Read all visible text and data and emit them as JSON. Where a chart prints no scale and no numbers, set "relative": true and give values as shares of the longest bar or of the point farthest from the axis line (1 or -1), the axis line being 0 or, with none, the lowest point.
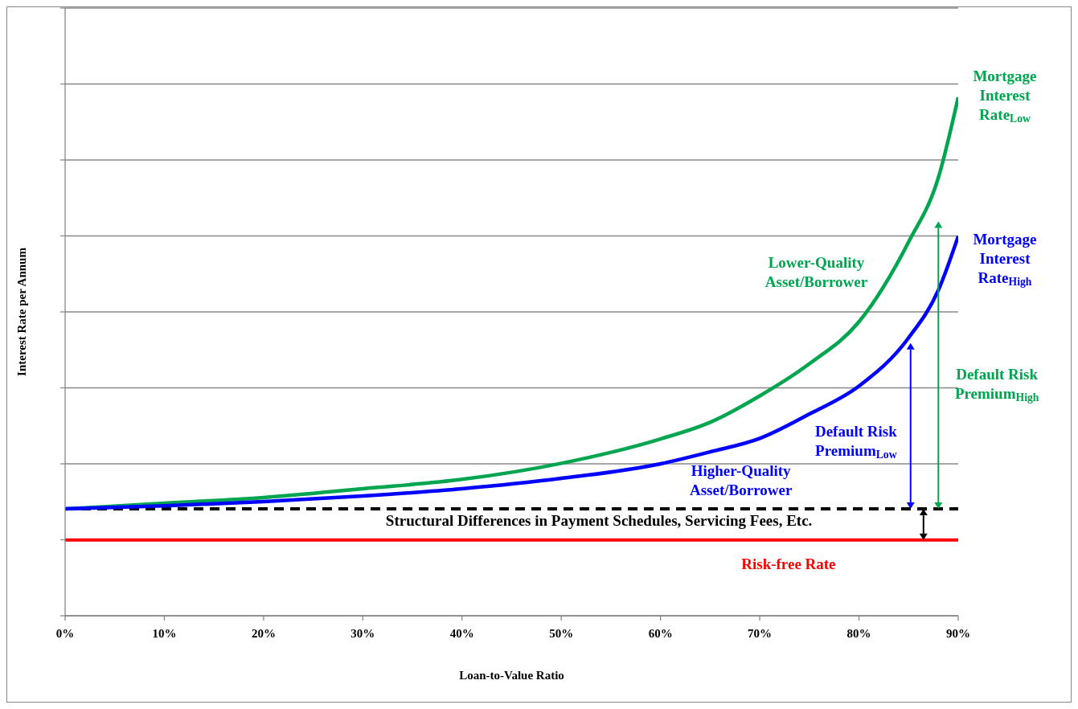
{
  "chart_data": {
    "type": "line",
    "relative": true,
    "xlabel": "Loan-to-Value  Ratio",
    "ylabel": "Interest Rate per Annum",
    "x": [
      0,
      10,
      20,
      30,
      40,
      50,
      60,
      65,
      70,
      75,
      80,
      85,
      88,
      90
    ],
    "xlim": [
      0,
      90
    ],
    "xticks": [
      {
        "value": 0,
        "label": "0%"
      },
      {
        "value": 10,
        "label": "10%"
      },
      {
        "value": 20,
        "label": "20%"
      },
      {
        "value": 30,
        "label": "30%"
      },
      {
        "value": 40,
        "label": "40%"
      },
      {
        "value": 50,
        "label": "50%"
      },
      {
        "value": 60,
        "label": "60%"
      },
      {
        "value": 70,
        "label": "70%"
      },
      {
        "value": 80,
        "label": "80%"
      },
      {
        "value": 90,
        "label": "90%"
      }
    ],
    "series": [
      {
        "name": "Mortgage Interest Rate$_{Low}$",
        "color": "#00a550",
        "values": [
          0.206,
          0.217,
          0.228,
          0.245,
          0.263,
          0.294,
          0.341,
          0.373,
          0.424,
          0.486,
          0.567,
          0.721,
          0.845,
          1
        ]
      },
      {
        "name": "Mortgage Interest Rate$_{High}$",
        "color": "#0000ff",
        "values": [
          0.206,
          0.212,
          0.22,
          0.231,
          0.245,
          0.265,
          0.293,
          0.316,
          0.342,
          0.389,
          0.443,
          0.536,
          0.628,
          0.732
        ]
      }
    ],
    "ref_lines": [
      {
        "axis": "y",
        "value": 0.206,
        "color": "#000000",
        "line_style": "dashed"
      },
      {
        "axis": "y",
        "value": 0.146,
        "color": "#ff0000",
        "label": "Risk-free Rate"
      }
    ],
    "annotations": [
      "Lower-Quality Asset/Borrower",
      "Higher-Quality Asset/Borrower",
      "Default Risk Premium$_{Low}$",
      "Default Risk Premium$_{High}$",
      "Structural Differences in Payment Schedules, Servicing Fees, Etc."
    ],
    "grid": "y",
    "legend": false,
    "tick_labels": "x",
    "marker": "none",
    "line_style": "solid"
  }
}
